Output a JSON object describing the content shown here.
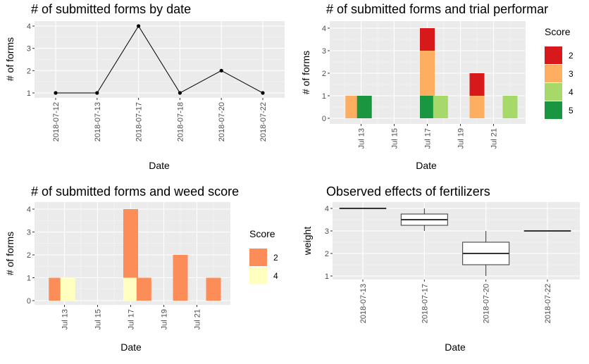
{
  "chart_data": [
    {
      "type": "line",
      "title": "# of submitted forms by date",
      "xlabel": "Date",
      "ylabel": "# of forms",
      "categories": [
        "2018-07-12",
        "2018-07-13",
        "2018-07-17",
        "2018-07-18",
        "2018-07-20",
        "2018-07-22"
      ],
      "values": [
        1,
        1,
        4,
        1,
        2,
        1
      ],
      "ylim": [
        1,
        4
      ],
      "yticks": [
        "1",
        "2",
        "3",
        "4"
      ]
    },
    {
      "type": "bar",
      "title": "# of submitted forms and trial performar",
      "xlabel": "Date",
      "ylabel": "# of forms",
      "legend_title": "Score",
      "legend": [
        {
          "label": "2",
          "color": "#d7191c"
        },
        {
          "label": "3",
          "color": "#fdae61"
        },
        {
          "label": "4",
          "color": "#a6d96a"
        },
        {
          "label": "5",
          "color": "#1a9641"
        }
      ],
      "xticks": [
        "Jul 13",
        "Jul 15",
        "Jul 17",
        "Jul 19",
        "Jul 21"
      ],
      "yticks": [
        "0",
        "1",
        "2",
        "3",
        "4"
      ],
      "ylim": [
        0,
        4
      ],
      "bars": [
        {
          "date": 12.5,
          "score": "3",
          "segments": [
            {
              "label": "3",
              "value": 1
            }
          ]
        },
        {
          "date": 13.2,
          "score": "5",
          "segments": [
            {
              "label": "5",
              "value": 1
            }
          ]
        },
        {
          "date": 17.0,
          "segments": [
            {
              "label": "5",
              "value": 1
            },
            {
              "label": "3",
              "value": 2
            },
            {
              "label": "2",
              "value": 1
            }
          ]
        },
        {
          "date": 17.8,
          "segments": [
            {
              "label": "4",
              "value": 1
            }
          ]
        },
        {
          "date": 20.0,
          "segments": [
            {
              "label": "3",
              "value": 1
            },
            {
              "label": "2",
              "value": 1
            }
          ]
        },
        {
          "date": 22.0,
          "segments": [
            {
              "label": "4",
              "value": 1
            }
          ]
        }
      ]
    },
    {
      "type": "bar",
      "title": "# of submitted forms and weed score",
      "xlabel": "Date",
      "ylabel": "# of forms",
      "legend_title": "Score",
      "legend": [
        {
          "label": "2",
          "color": "#fc8d59"
        },
        {
          "label": "4",
          "color": "#ffffbf"
        }
      ],
      "xticks": [
        "Jul 13",
        "Jul 15",
        "Jul 17",
        "Jul 19",
        "Jul 21"
      ],
      "yticks": [
        "0",
        "1",
        "2",
        "3",
        "4"
      ],
      "ylim": [
        0,
        4
      ],
      "bars": [
        {
          "date": 12.5,
          "segments": [
            {
              "label": "2",
              "value": 1
            }
          ]
        },
        {
          "date": 13.2,
          "segments": [
            {
              "label": "4",
              "value": 1
            }
          ]
        },
        {
          "date": 17.0,
          "segments": [
            {
              "label": "4",
              "value": 1
            },
            {
              "label": "2",
              "value": 3
            }
          ]
        },
        {
          "date": 17.8,
          "segments": [
            {
              "label": "2",
              "value": 1
            }
          ]
        },
        {
          "date": 20.0,
          "segments": [
            {
              "label": "2",
              "value": 2
            }
          ]
        },
        {
          "date": 22.0,
          "segments": [
            {
              "label": "2",
              "value": 1
            }
          ]
        }
      ]
    },
    {
      "type": "box",
      "title": "Observed effects of fertilizers",
      "xlabel": "Date",
      "ylabel": "weight",
      "categories": [
        "2018-07-13",
        "2018-07-17",
        "2018-07-20",
        "2018-07-22"
      ],
      "yticks": [
        "1",
        "2",
        "3",
        "4"
      ],
      "ylim": [
        0.85,
        4.1
      ],
      "boxes": [
        {
          "min": 4,
          "q1": 4,
          "median": 4,
          "q3": 4,
          "max": 4
        },
        {
          "min": 3,
          "q1": 3.25,
          "median": 3.5,
          "q3": 3.75,
          "max": 4
        },
        {
          "min": 1,
          "q1": 1.5,
          "median": 2,
          "q3": 2.5,
          "max": 3
        },
        {
          "min": 3,
          "q1": 3,
          "median": 3,
          "q3": 3,
          "max": 3
        }
      ]
    }
  ]
}
